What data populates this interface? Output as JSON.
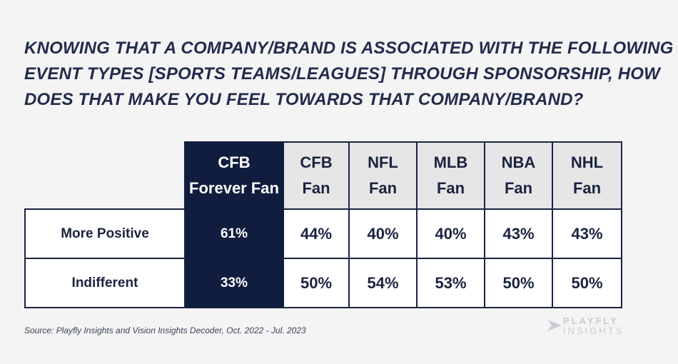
{
  "title_lines": [
    "KNOWING THAT A COMPANY/BRAND IS ASSOCIATED WITH THE FOLLOWING",
    "EVENT TYPES [SPORTS TEAMS/LEAGUES] THROUGH SPONSORSHIP, HOW",
    "DOES THAT MAKE YOU FEEL TOWARDS THAT COMPANY/BRAND?"
  ],
  "colors": {
    "title": "#232b4d",
    "highlight": "#101d3e",
    "header_bg": "#e6e6e6",
    "border": "#1b2340"
  },
  "chart_data": {
    "type": "table",
    "columns": [
      {
        "line1": "CFB",
        "line2": "Forever Fan",
        "highlight": true
      },
      {
        "line1": "CFB",
        "line2": "Fan",
        "highlight": false
      },
      {
        "line1": "NFL",
        "line2": "Fan",
        "highlight": false
      },
      {
        "line1": "MLB",
        "line2": "Fan",
        "highlight": false
      },
      {
        "line1": "NBA",
        "line2": "Fan",
        "highlight": false
      },
      {
        "line1": "NHL",
        "line2": "Fan",
        "highlight": false
      }
    ],
    "rows": [
      {
        "label": "More Positive",
        "values": [
          "61%",
          "44%",
          "40%",
          "40%",
          "43%",
          "43%"
        ]
      },
      {
        "label": "Indifferent",
        "values": [
          "33%",
          "50%",
          "54%",
          "53%",
          "50%",
          "50%"
        ]
      }
    ]
  },
  "source": "Source: Playfly Insights and Vision Insights Decoder, Oct. 2022 - Jul. 2023",
  "logo": {
    "line1": "PLAYFLY",
    "line2": "INSIGHTS",
    "icon": "playfly-arrow-icon"
  }
}
